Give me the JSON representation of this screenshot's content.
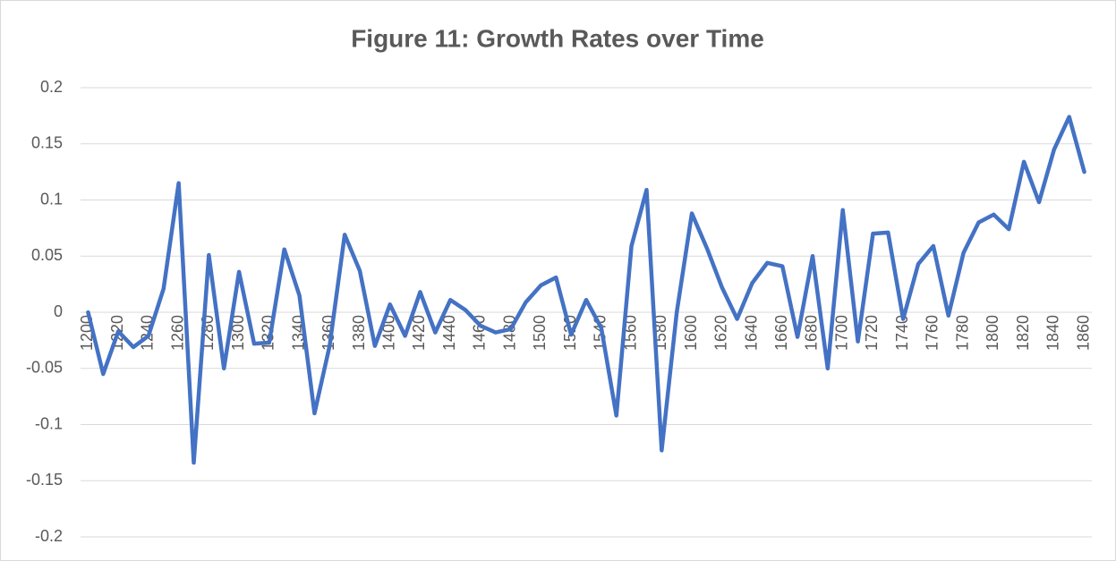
{
  "chart_data": {
    "type": "line",
    "title": "Figure 11: Growth Rates over Time",
    "categories": [
      1200,
      null,
      1220,
      null,
      1240,
      null,
      1260,
      null,
      1280,
      null,
      1300,
      null,
      1320,
      null,
      1340,
      null,
      1360,
      null,
      1380,
      null,
      1400,
      null,
      1420,
      null,
      1440,
      null,
      1460,
      null,
      1480,
      null,
      1500,
      null,
      1520,
      null,
      1540,
      null,
      1560,
      null,
      1580,
      null,
      1600,
      null,
      1620,
      null,
      1640,
      null,
      1660,
      null,
      1680,
      null,
      1700,
      null,
      1720,
      null,
      1740,
      null,
      1760,
      null,
      1780,
      null,
      1800,
      null,
      1820,
      null,
      1840,
      null,
      1860
    ],
    "series": [
      {
        "name": "Growth Rate",
        "color": "#4472c4",
        "values": [
          0,
          -0.055,
          -0.017,
          -0.031,
          -0.021,
          0.021,
          0.115,
          -0.134,
          0.051,
          -0.05,
          0.036,
          -0.028,
          -0.027,
          0.056,
          0.015,
          -0.09,
          -0.03,
          0.069,
          0.037,
          -0.03,
          0.007,
          -0.021,
          0.018,
          -0.018,
          0.011,
          0.002,
          -0.012,
          -0.018,
          -0.015,
          0.009,
          0.024,
          0.031,
          -0.02,
          0.011,
          -0.014,
          -0.092,
          0.059,
          0.109,
          -0.123,
          0,
          0.088,
          0.057,
          0.022,
          -0.006,
          0.026,
          0.044,
          0.041,
          -0.022,
          0.05,
          -0.05,
          0.091,
          -0.026,
          0.07,
          0.071,
          -0.006,
          0.043,
          0.059,
          -0.003,
          0.053,
          0.08,
          0.087,
          0.074,
          0.134,
          0.098,
          0.145,
          0.174,
          0.125
        ]
      }
    ],
    "ylim": [
      -0.2,
      0.2
    ],
    "yticks": [
      0.2,
      0.15,
      0.1,
      0.05,
      0,
      -0.05,
      -0.1,
      -0.15,
      -0.2
    ],
    "grid": true
  }
}
